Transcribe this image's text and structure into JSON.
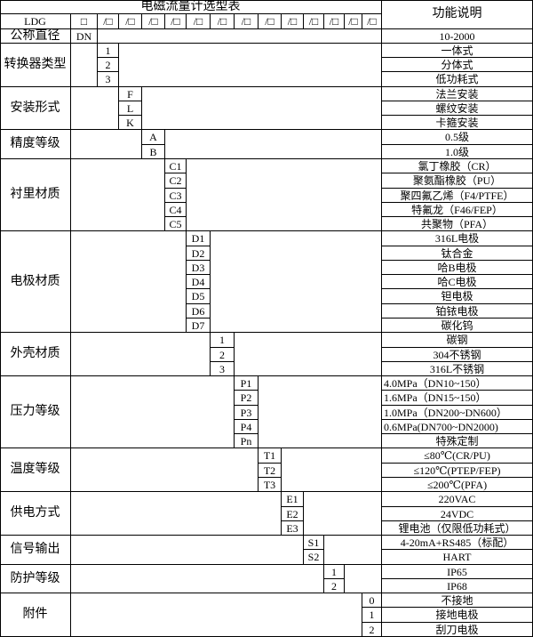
{
  "title": "电磁流量计选型表",
  "function_header": "功能说明",
  "model_row": {
    "model": "LDG",
    "first_box": "□",
    "boxes": [
      "/□",
      "/□",
      "/□",
      "/□",
      "/□",
      "/□",
      "/□",
      "/□",
      "/□",
      "/□",
      "/□",
      "/□",
      "/□"
    ]
  },
  "nominal_diameter": {
    "label": "公称直径",
    "code": "DN",
    "description": "10-2000"
  },
  "groups": [
    {
      "label": "转换器类型",
      "col": 0,
      "codes": [
        "1",
        "2",
        "3"
      ],
      "descriptions": [
        "一体式",
        "分体式",
        "低功耗式"
      ]
    },
    {
      "label": "安装形式",
      "col": 1,
      "codes": [
        "F",
        "L",
        "K"
      ],
      "descriptions": [
        "法兰安装",
        "螺纹安装",
        "卡箍安装"
      ]
    },
    {
      "label": "精度等级",
      "col": 2,
      "codes": [
        "A",
        "B"
      ],
      "descriptions": [
        "0.5级",
        "1.0级"
      ]
    },
    {
      "label": "衬里材质",
      "col": 3,
      "codes": [
        "C1",
        "C2",
        "C3",
        "C4",
        "C5"
      ],
      "descriptions": [
        "氯丁橡胶（CR）",
        "聚氨酯橡胶（PU）",
        "聚四氟乙烯（F4/PTFE）",
        "特氟龙（F46/FEP）",
        "共聚物（PFA）"
      ]
    },
    {
      "label": "电极材质",
      "col": 4,
      "codes": [
        "D1",
        "D2",
        "D3",
        "D4",
        "D5",
        "D6",
        "D7"
      ],
      "descriptions": [
        "316L电极",
        "钛合金",
        "哈B电极",
        "哈C电极",
        "钽电极",
        "铂铱电极",
        "碳化钨"
      ]
    },
    {
      "label": "外壳材质",
      "col": 5,
      "codes": [
        "1",
        "2",
        "3"
      ],
      "descriptions": [
        "碳钢",
        "304不锈钢",
        "316L不锈钢"
      ]
    },
    {
      "label": "压力等级",
      "col": 6,
      "codes": [
        "P1",
        "P2",
        "P3",
        "P4",
        "Pn"
      ],
      "descriptions": [
        "4.0MPa（DN10~150）",
        "1.6MPa（DN15~150）",
        "1.0MPa（DN200~DN600）",
        "0.6MPa(DN700~DN2000)",
        "特殊定制"
      ],
      "left_aligned": [
        true,
        true,
        true,
        true,
        false
      ]
    },
    {
      "label": "温度等级",
      "col": 7,
      "codes": [
        "T1",
        "T2",
        "T3"
      ],
      "descriptions": [
        "≤80℃(CR/PU)",
        "≤120℃(PTEP/FEP)",
        "≤200℃(PFA)"
      ]
    },
    {
      "label": "供电方式",
      "col": 8,
      "codes": [
        "E1",
        "E2",
        "E3"
      ],
      "descriptions": [
        "220VAC",
        "24VDC",
        "锂电池（仅限低功耗式）"
      ]
    },
    {
      "label": "信号输出",
      "col": 9,
      "codes": [
        "S1",
        "S2"
      ],
      "descriptions": [
        "4-20mA+RS485（标配）",
        "HART"
      ]
    },
    {
      "label": "防护等级",
      "col": 10,
      "codes": [
        "1",
        "2"
      ],
      "descriptions": [
        "IP65",
        "IP68"
      ]
    },
    {
      "label": "附件",
      "col": 12,
      "codes": [
        "0",
        "1",
        "2"
      ],
      "descriptions": [
        "不接地",
        "接地电极",
        "刮刀电极"
      ]
    }
  ]
}
